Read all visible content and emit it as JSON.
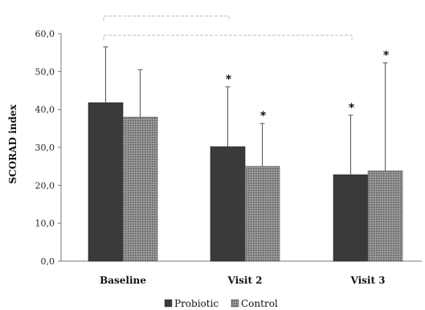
{
  "chart_data": {
    "type": "bar",
    "categories": [
      "Baseline",
      "Visit 2",
      "Visit 3"
    ],
    "ylabel": "SCORAD index",
    "ylim": [
      0,
      60
    ],
    "yticks": [
      "0,0",
      "10,0",
      "20,0",
      "30,0",
      "40,0",
      "50,0",
      "60,0"
    ],
    "series": [
      {
        "name": "Probiotic",
        "values": [
          41.8,
          30.2,
          22.8
        ],
        "error_upper": [
          56.5,
          46.0,
          38.5
        ],
        "color": "#3a3a3a"
      },
      {
        "name": "Control",
        "values": [
          38.0,
          25.0,
          23.8
        ],
        "error_upper": [
          50.5,
          36.3,
          52.3
        ],
        "color": "#8a8a8a"
      }
    ],
    "significance_marks": [
      {
        "category": "Visit 2",
        "series": "Probiotic",
        "label": "*"
      },
      {
        "category": "Visit 2",
        "series": "Control",
        "label": "*"
      },
      {
        "category": "Visit 3",
        "series": "Probiotic",
        "label": "*"
      },
      {
        "category": "Visit 3",
        "series": "Control",
        "label": "*"
      }
    ],
    "brackets": [
      {
        "from": "Baseline",
        "to": "Visit 2"
      },
      {
        "from": "Baseline",
        "to": "Visit 3"
      }
    ],
    "legend_position": "bottom",
    "grid": false
  }
}
